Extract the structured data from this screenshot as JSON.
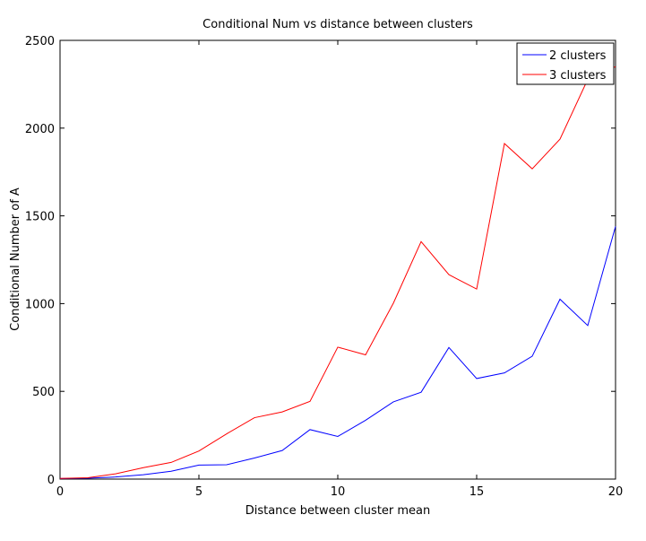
{
  "chart_data": {
    "type": "line",
    "title": "Conditional Num vs distance between clusters",
    "xlabel": "Distance between cluster mean",
    "ylabel": "Conditional Number of A",
    "xlim": [
      0,
      20
    ],
    "ylim": [
      0,
      2500
    ],
    "xticks": [
      0,
      5,
      10,
      15,
      20
    ],
    "yticks": [
      0,
      500,
      1000,
      1500,
      2000,
      2500
    ],
    "grid": false,
    "legend_position": "top-right",
    "x": [
      0,
      1,
      2,
      3,
      4,
      5,
      6,
      7,
      8,
      9,
      10,
      11,
      12,
      13,
      14,
      15,
      16,
      17,
      18,
      19,
      20
    ],
    "series": [
      {
        "name": "2 clusters",
        "color": "#0000ff",
        "values": [
          3,
          5,
          12,
          25,
          45,
          80,
          82,
          120,
          163,
          282,
          243,
          335,
          440,
          495,
          750,
          573,
          605,
          700,
          1025,
          875,
          1440
        ]
      },
      {
        "name": "3 clusters",
        "color": "#ff0000",
        "values": [
          4,
          8,
          30,
          65,
          95,
          160,
          258,
          350,
          383,
          443,
          752,
          708,
          1002,
          1353,
          1165,
          1083,
          1912,
          1768,
          1937,
          2278,
          2350
        ]
      }
    ]
  }
}
